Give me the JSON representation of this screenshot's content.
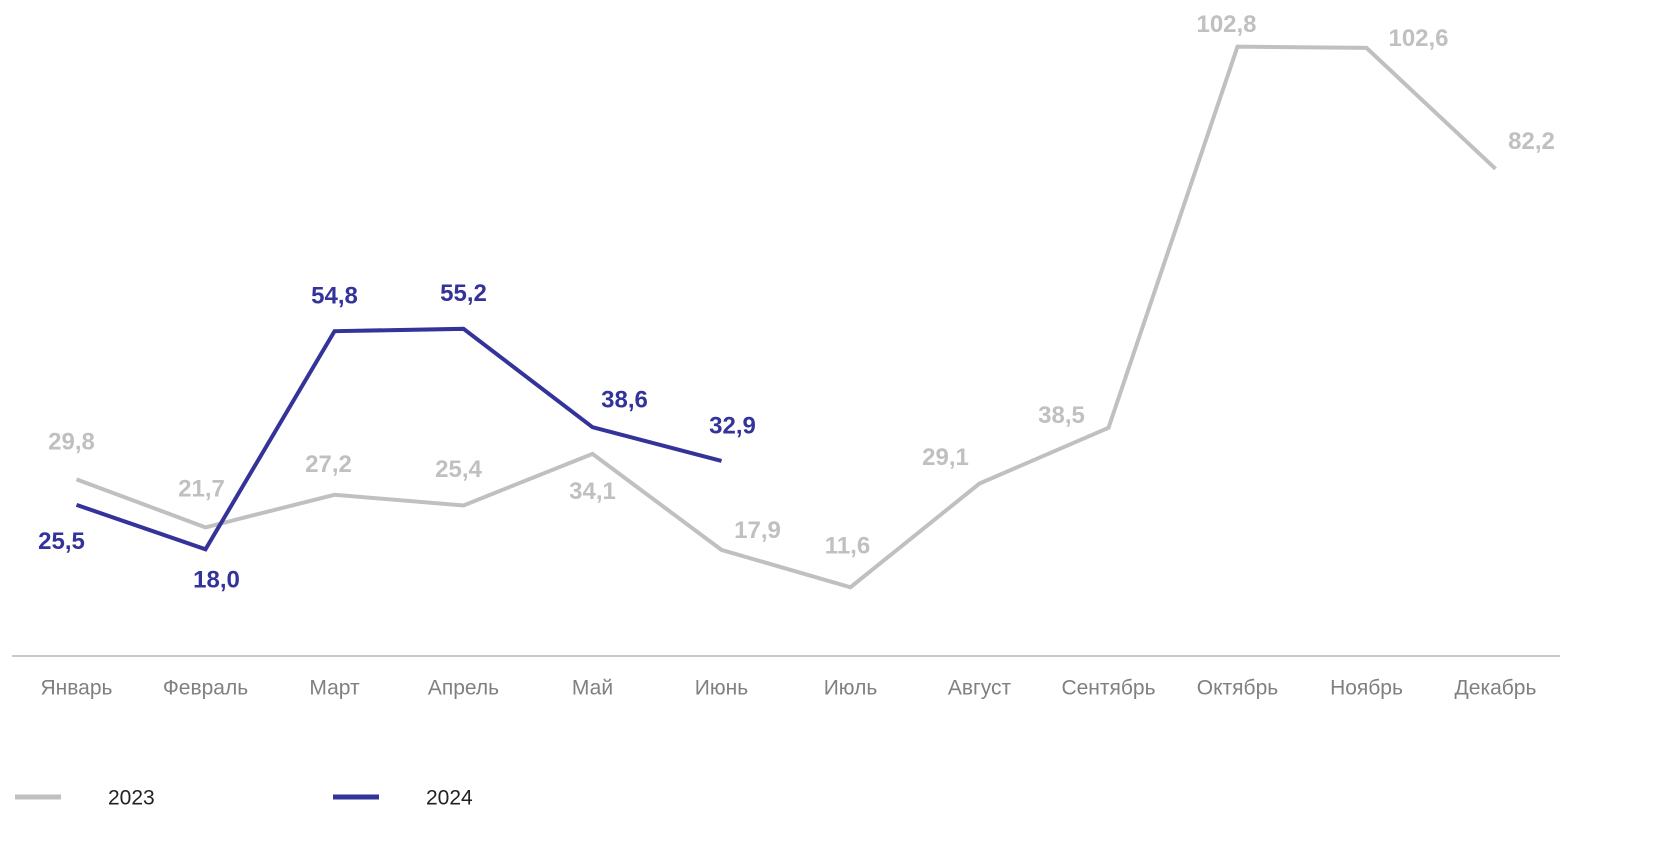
{
  "chart_data": {
    "type": "line",
    "categories": [
      "Январь",
      "Февраль",
      "Март",
      "Апрель",
      "Май",
      "Июнь",
      "Июль",
      "Август",
      "Сентябрь",
      "Октябрь",
      "Ноябрь",
      "Декабрь"
    ],
    "series": [
      {
        "name": "2023",
        "color": "#c0c0c0",
        "values": [
          29.8,
          21.7,
          27.2,
          25.4,
          34.1,
          17.9,
          11.6,
          29.1,
          38.5,
          102.8,
          102.6,
          82.2
        ],
        "value_labels": [
          "29,8",
          "21,7",
          "27,2",
          "25,4",
          "34,1",
          "17,9",
          "11,6",
          "29,1",
          "38,5",
          "102,8",
          "102,6",
          "82,2"
        ]
      },
      {
        "name": "2024",
        "color": "#333399",
        "values": [
          25.5,
          18.0,
          54.8,
          55.2,
          38.6,
          32.9,
          null,
          null,
          null,
          null,
          null,
          null
        ],
        "value_labels": [
          "25,5",
          "18,0",
          "54,8",
          "55,2",
          "38,6",
          "32,9",
          null,
          null,
          null,
          null,
          null,
          null
        ]
      }
    ],
    "ylim": [
      0,
      110
    ]
  }
}
